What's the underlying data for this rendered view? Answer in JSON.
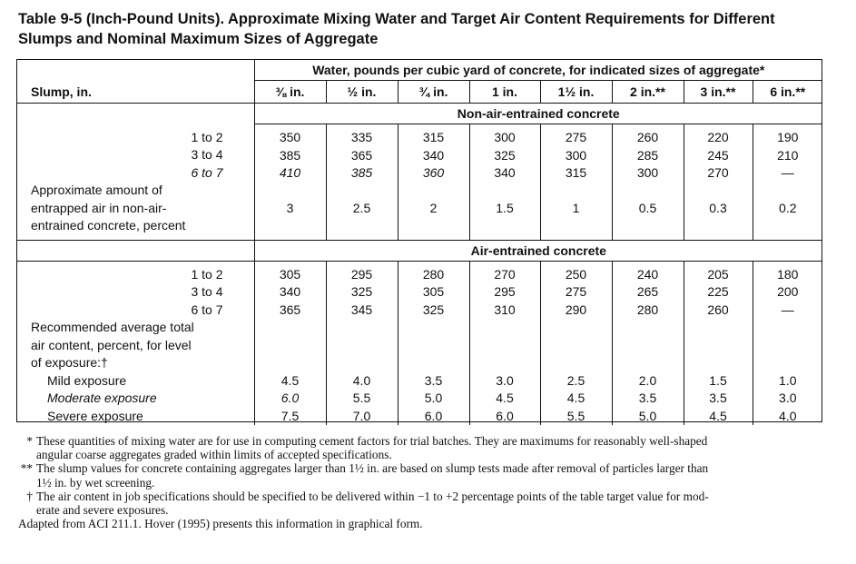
{
  "title": {
    "line1": "Table 9-5 (Inch-Pound Units). Approximate Mixing Water and Target Air Content Requirements for Different",
    "line2": "Slumps and Nominal Maximum Sizes of Aggregate"
  },
  "table": {
    "slump_header": "Slump, in.",
    "water_header": "Water, pounds per cubic yard of concrete, for indicated sizes of aggregate*",
    "sizes": [
      "⅜ in.",
      "½ in.",
      "¾ in.",
      "1 in.",
      "1½ in.",
      "2 in.**",
      "3 in.**",
      "6 in.**"
    ],
    "non_air": {
      "section_title": "Non-air-entrained concrete",
      "slumps": [
        "1 to 2",
        "3 to 4",
        "6 to 7"
      ],
      "columns": [
        [
          "350",
          "385",
          "410"
        ],
        [
          "335",
          "365",
          "385"
        ],
        [
          "315",
          "340",
          "360"
        ],
        [
          "300",
          "325",
          "340"
        ],
        [
          "275",
          "300",
          "315"
        ],
        [
          "260",
          "285",
          "300"
        ],
        [
          "220",
          "245",
          "270"
        ],
        [
          "190",
          "210",
          "—"
        ]
      ],
      "entrapped_label": [
        "Approximate amount of",
        "entrapped air in non-air-",
        "entrained concrete, percent"
      ],
      "entrapped_values": [
        "3",
        "2.5",
        "2",
        "1.5",
        "1",
        "0.5",
        "0.3",
        "0.2"
      ]
    },
    "air": {
      "section_title": "Air-entrained concrete",
      "slumps": [
        "1 to 2",
        "3 to 4",
        "6 to 7"
      ],
      "columns": [
        [
          "305",
          "340",
          "365"
        ],
        [
          "295",
          "325",
          "345"
        ],
        [
          "280",
          "305",
          "325"
        ],
        [
          "270",
          "295",
          "310"
        ],
        [
          "250",
          "275",
          "290"
        ],
        [
          "240",
          "265",
          "280"
        ],
        [
          "205",
          "225",
          "260"
        ],
        [
          "180",
          "200",
          "—"
        ]
      ],
      "recommended_label": [
        "Recommended average total",
        "air content, percent, for level",
        "of exposure:†"
      ],
      "exposure_labels": [
        "Mild exposure",
        "Moderate exposure",
        "Severe exposure"
      ],
      "exposure_columns": [
        [
          "4.5",
          "6.0",
          "7.5"
        ],
        [
          "4.0",
          "5.5",
          "7.0"
        ],
        [
          "3.5",
          "5.0",
          "6.0"
        ],
        [
          "3.0",
          "4.5",
          "6.0"
        ],
        [
          "2.5",
          "4.5",
          "5.5"
        ],
        [
          "2.0",
          "3.5",
          "5.0"
        ],
        [
          "1.5",
          "3.5",
          "4.5"
        ],
        [
          "1.0",
          "3.0",
          "4.0"
        ]
      ]
    }
  },
  "footnotes": {
    "star": {
      "mark": "*",
      "line1": "These quantities of mixing water are for use in computing cement factors for trial batches. They are maximums for reasonably well-shaped",
      "line2": "angular coarse aggregates graded within limits of accepted specifications."
    },
    "double_star": {
      "mark": "**",
      "line1": "The slump values for concrete containing aggregates larger than 1½ in. are based on slump tests made after removal of particles larger than",
      "line2": "1½ in. by wet screening."
    },
    "dagger": {
      "mark": "†",
      "line1": "The air content in job specifications should be specified to be delivered within −1 to +2 percentage points of the table target value for mod-",
      "line2": "erate and severe exposures."
    },
    "source": "Adapted from ACI 211.1. Hover (1995) presents this information in graphical form."
  }
}
